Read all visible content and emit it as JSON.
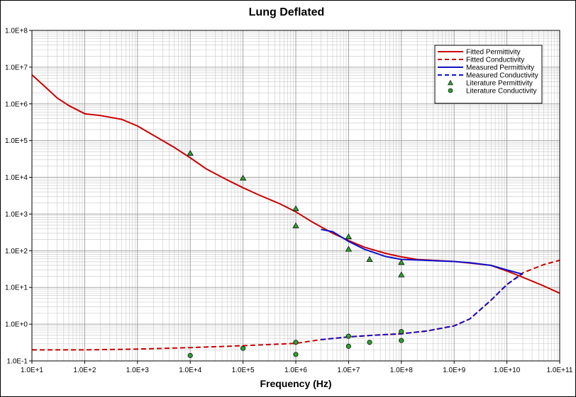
{
  "chart_data": {
    "type": "line",
    "title": "Lung Deflated",
    "xlabel": "Frequency (Hz)",
    "ylabel": "",
    "x_scale": "log",
    "y_scale": "log",
    "xlim": [
      10,
      100000000000
    ],
    "ylim": [
      0.1,
      100000000
    ],
    "grid": true,
    "legend_position": "top-right",
    "x_tick_labels": [
      "1.0E+1",
      "1.0E+2",
      "1.0E+3",
      "1.0E+4",
      "1.0E+5",
      "1.0E+6",
      "1.0E+7",
      "1.0E+8",
      "1.0E+9",
      "1.0E+10",
      "1.0E+11"
    ],
    "y_tick_labels": [
      "1.0E-1",
      "1.0E+0",
      "1.0E+1",
      "1.0E+2",
      "1.0E+3",
      "1.0E+4",
      "1.0E+5",
      "1.0E+6",
      "1.0E+7",
      "1.0E+8"
    ],
    "series": [
      {
        "name": "Fitted Permittivity",
        "color": "#cc0000",
        "style": "solid",
        "x": [
          10,
          20,
          30,
          50,
          100,
          200,
          500,
          1000,
          2000,
          5000,
          10000,
          20000,
          50000,
          100000,
          200000,
          500000,
          1000000,
          2000000,
          5000000,
          10000000,
          20000000,
          50000000,
          100000000,
          200000000,
          500000000,
          1000000000,
          2000000000,
          5000000000,
          10000000000,
          20000000000,
          50000000000,
          100000000000
        ],
        "y": [
          6200000,
          2500000,
          1450000,
          900000,
          540000,
          480000,
          380000,
          250000,
          140000,
          65000,
          34000,
          17000,
          8500,
          5200,
          3300,
          1900,
          1150,
          620,
          300,
          190,
          125,
          85,
          68,
          58,
          54,
          51,
          46,
          40,
          28,
          19,
          11,
          7
        ]
      },
      {
        "name": "Fitted Conductivity",
        "color": "#cc0000",
        "style": "dashed",
        "x": [
          10,
          100,
          1000,
          10000,
          100000,
          1000000,
          3000000,
          10000000,
          30000000,
          100000000,
          300000000,
          1000000000,
          2000000000,
          5000000000,
          10000000000,
          20000000000,
          50000000000,
          100000000000
        ],
        "y": [
          0.2,
          0.2,
          0.21,
          0.23,
          0.26,
          0.3,
          0.38,
          0.45,
          0.5,
          0.55,
          0.65,
          0.9,
          1.4,
          4.5,
          12,
          25,
          42,
          55
        ]
      },
      {
        "name": "Measured Permittivity",
        "color": "#1010cc",
        "style": "solid",
        "x": [
          3000000,
          5000000,
          10000000,
          20000000,
          50000000,
          100000000,
          200000000,
          500000000,
          1000000000,
          2000000000,
          5000000000,
          10000000000,
          20000000000
        ],
        "y": [
          380,
          330,
          180,
          110,
          70,
          58,
          56,
          53,
          51,
          47,
          40,
          30,
          23
        ]
      },
      {
        "name": "Measured Conductivity",
        "color": "#1010cc",
        "style": "dashed",
        "x": [
          3000000,
          10000000,
          30000000,
          100000000,
          300000000,
          1000000000,
          2000000000,
          5000000000,
          10000000000,
          20000000000
        ],
        "y": [
          0.38,
          0.45,
          0.5,
          0.55,
          0.65,
          0.9,
          1.4,
          4.5,
          12,
          24
        ]
      },
      {
        "name": "Literature Permittivity",
        "color": "#2e9e2e",
        "style": "triangle",
        "x": [
          10000,
          100000,
          1000000,
          1000000,
          10000000,
          10000000,
          25000000,
          100000000,
          100000000
        ],
        "y": [
          45000,
          9500,
          1400,
          480,
          240,
          110,
          58,
          48,
          22
        ]
      },
      {
        "name": "Literature Conductivity",
        "color": "#2e9e2e",
        "style": "circle",
        "x": [
          10000,
          100000,
          1000000,
          1000000,
          10000000,
          10000000,
          25000000,
          100000000,
          100000000
        ],
        "y": [
          0.14,
          0.22,
          0.32,
          0.15,
          0.47,
          0.25,
          0.32,
          0.63,
          0.36
        ]
      }
    ]
  }
}
